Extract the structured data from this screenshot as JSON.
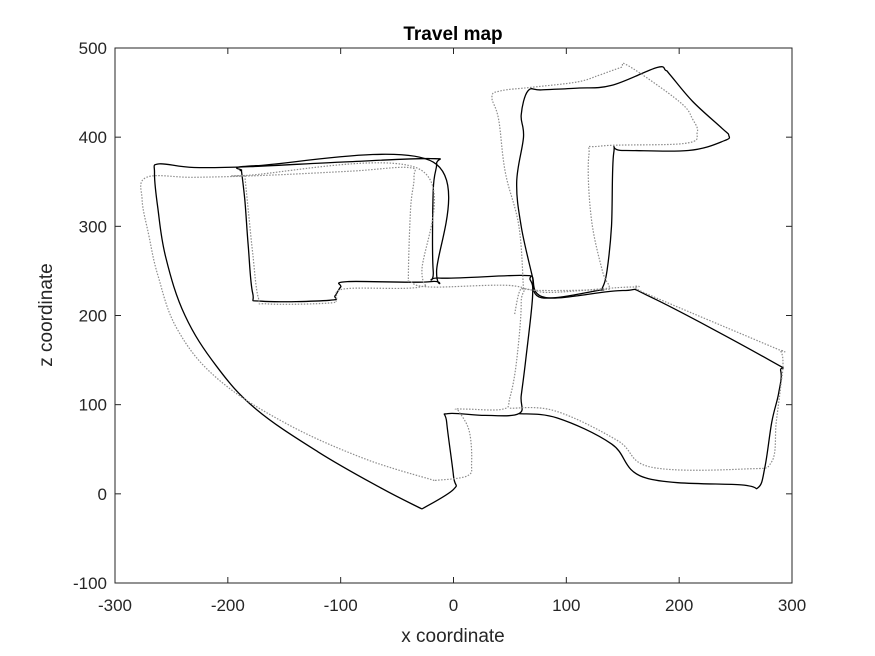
{
  "chart_data": {
    "type": "line",
    "title": "Travel map",
    "xlabel": "x coordinate",
    "ylabel": "z coordinate",
    "xlim": [
      -300,
      300
    ],
    "ylim": [
      -100,
      500
    ],
    "xticks": [
      -300,
      -200,
      -100,
      0,
      100,
      200,
      300
    ],
    "yticks": [
      -100,
      0,
      100,
      200,
      300,
      400,
      500
    ],
    "xtick_labels": [
      "-300",
      "-200",
      "-100",
      "0",
      "100",
      "200",
      "300"
    ],
    "ytick_labels": [
      "-100",
      "0",
      "100",
      "200",
      "300",
      "400",
      "500"
    ],
    "grid": false,
    "series": [
      {
        "style": "solid",
        "color": "#000000",
        "x": [
          -28,
          -65,
          -120,
          -175,
          -210,
          -238,
          -255,
          -262,
          -265,
          -261,
          -230,
          -180,
          -100,
          -20,
          -15,
          -18,
          -18,
          -12,
          60,
          68,
          70,
          64,
          60,
          58,
          28,
          -5,
          -6,
          0,
          0,
          -28
        ],
        "y": [
          -17,
          7,
          47,
          95,
          143,
          200,
          265,
          320,
          360,
          370,
          366,
          367,
          372,
          376,
          370,
          340,
          250,
          242,
          245,
          240,
          220,
          150,
          110,
          90,
          88,
          90,
          80,
          20,
          5,
          -17
        ]
      },
      {
        "style": "solid",
        "color": "#000000",
        "x": [
          -188,
          -185,
          -182,
          -178,
          -170,
          -110,
          -105,
          -100,
          -94,
          -20,
          -15,
          -18,
          -175,
          -188
        ],
        "y": [
          363,
          330,
          280,
          225,
          216,
          217,
          222,
          232,
          238,
          238,
          250,
          372,
          368,
          363
        ],
        "closed": true
      },
      {
        "style": "solid",
        "color": "#000000",
        "x": [
          58,
          92,
          140,
          170,
          255,
          270,
          276,
          282,
          288,
          290,
          280,
          176,
          150,
          82,
          70
        ],
        "y": [
          90,
          85,
          56,
          18,
          10,
          7,
          30,
          80,
          112,
          138,
          150,
          220,
          228,
          220,
          243
        ],
        "closed": false
      },
      {
        "style": "solid",
        "color": "#000000",
        "x": [
          70,
          60,
          56,
          62,
          60,
          66,
          78,
          110,
          140,
          180,
          188,
          192,
          212,
          238,
          244,
          240,
          208,
          150,
          142,
          140,
          136,
          132,
          128,
          78,
          70
        ],
        "y": [
          243,
          300,
          350,
          400,
          425,
          452,
          453,
          455,
          458,
          478,
          475,
          470,
          440,
          410,
          402,
          396,
          385,
          385,
          382,
          300,
          250,
          231,
          228,
          220,
          243
        ],
        "closed": true
      },
      {
        "style": "dotted",
        "color": "#8c8c8c",
        "x": [
          -17,
          -80,
          -150,
          -210,
          -245,
          -262,
          -270,
          -276,
          -272,
          -230,
          -170,
          -90,
          -40,
          -35,
          -38,
          -40,
          -38,
          -20,
          55,
          60,
          56,
          50,
          44,
          12,
          2,
          5,
          14,
          16,
          12,
          -17
        ],
        "y": [
          15,
          40,
          80,
          130,
          185,
          245,
          290,
          330,
          355,
          355,
          357,
          362,
          366,
          355,
          320,
          245,
          238,
          232,
          233,
          215,
          150,
          108,
          95,
          95,
          95,
          92,
          70,
          35,
          20,
          15
        ]
      },
      {
        "style": "dotted",
        "color": "#8c8c8c",
        "x": [
          -185,
          -182,
          -178,
          -173,
          -165,
          -110,
          -104,
          -96,
          -30,
          -28,
          -30,
          -185
        ],
        "y": [
          357,
          320,
          270,
          220,
          213,
          214,
          219,
          230,
          232,
          250,
          364,
          357
        ],
        "closed": true
      },
      {
        "style": "dotted",
        "color": "#8c8c8c",
        "x": [
          50,
          90,
          145,
          175,
          260,
          282,
          286,
          290,
          292,
          290,
          282,
          170,
          160,
          90,
          72,
          62,
          58,
          54
        ],
        "y": [
          96,
          93,
          60,
          30,
          28,
          36,
          80,
          120,
          145,
          160,
          165,
          225,
          232,
          226,
          228,
          230,
          225,
          200
        ],
        "closed": false
      },
      {
        "style": "dotted",
        "color": "#8c8c8c",
        "x": [
          62,
          58,
          46,
          40,
          34,
          42,
          70,
          110,
          130,
          148,
          155,
          200,
          212,
          216,
          205,
          130,
          120,
          122,
          132,
          138,
          130,
          80,
          62
        ],
        "y": [
          230,
          300,
          360,
          420,
          445,
          452,
          456,
          462,
          470,
          478,
          480,
          440,
          420,
          405,
          393,
          390,
          380,
          310,
          250,
          232,
          229,
          228,
          230
        ],
        "closed": true
      }
    ]
  }
}
